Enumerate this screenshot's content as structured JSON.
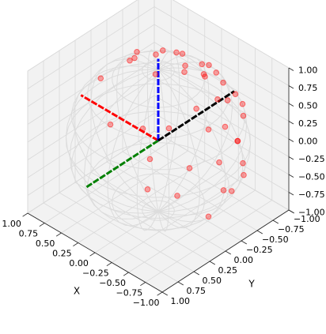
{
  "chart_data": {
    "type": "scatter3d",
    "xlabel": "X",
    "ylabel": "Y",
    "color": "#ff0000",
    "grid": true,
    "xlim": [
      -1,
      1
    ],
    "ylim": [
      -1,
      1
    ],
    "zlim": [
      -1,
      1
    ],
    "xticks": [
      {
        "value": -1,
        "label": "−1.00"
      },
      {
        "value": -0.75,
        "label": "−0.75"
      },
      {
        "value": -0.5,
        "label": "−0.50"
      },
      {
        "value": -0.25,
        "label": "−0.25"
      },
      {
        "value": 0,
        "label": "0.00"
      },
      {
        "value": 0.25,
        "label": "0.25"
      },
      {
        "value": 0.5,
        "label": "0.50"
      },
      {
        "value": 0.75,
        "label": "0.75"
      },
      {
        "value": 1,
        "label": "1.00"
      }
    ],
    "yticks": [
      {
        "value": -1,
        "label": "−1.00"
      },
      {
        "value": -0.75,
        "label": "−0.75"
      },
      {
        "value": -0.5,
        "label": "−0.50"
      },
      {
        "value": -0.25,
        "label": "−0.25"
      },
      {
        "value": 0,
        "label": "0.00"
      },
      {
        "value": 0.25,
        "label": "0.25"
      },
      {
        "value": 0.5,
        "label": "0.50"
      },
      {
        "value": 0.75,
        "label": "0.75"
      },
      {
        "value": 1,
        "label": "1.00"
      }
    ],
    "zticks": [
      {
        "value": -1,
        "label": "−1.00"
      },
      {
        "value": -0.75,
        "label": "−0.75"
      },
      {
        "value": -0.5,
        "label": "−0.50"
      },
      {
        "value": -0.25,
        "label": "−0.25"
      },
      {
        "value": 0,
        "label": "0.00"
      },
      {
        "value": 0.25,
        "label": "0.25"
      },
      {
        "value": 0.5,
        "label": "0.50"
      },
      {
        "value": 0.75,
        "label": "0.75"
      },
      {
        "value": 1,
        "label": "1.00"
      }
    ],
    "x": [
      -0.1,
      0.2,
      -0.3,
      0.1,
      -0.5,
      0.4,
      0.0,
      -0.2,
      0.5,
      -0.6,
      0.3,
      -0.4,
      0.6,
      -0.7,
      0.1,
      -0.8,
      0.7,
      0.2,
      -0.5,
      0.8,
      -0.3,
      0.5,
      -0.9,
      0.0,
      0.6,
      -0.6,
      0.9,
      -0.2,
      0.3,
      -0.95,
      0.95,
      0.4,
      -0.7,
      0.7,
      -0.1,
      0.3,
      -0.35,
      0.15,
      -0.25,
      0.45
    ],
    "y": [
      -0.99,
      -0.95,
      -0.9,
      -0.9,
      -0.8,
      -0.85,
      -0.8,
      -0.75,
      -0.7,
      -0.7,
      -0.7,
      -0.6,
      -0.6,
      -0.6,
      -0.6,
      -0.5,
      -0.5,
      -0.5,
      -0.5,
      -0.4,
      -0.4,
      -0.4,
      -0.3,
      -0.3,
      -0.3,
      -0.3,
      -0.2,
      -0.2,
      -0.15,
      -0.15,
      -0.1,
      -0.05,
      -0.05,
      -0.7,
      -0.95,
      -0.92,
      -0.88,
      -0.85,
      -0.65,
      -0.55
    ],
    "z": [
      0.05,
      0.24,
      0.3,
      -0.42,
      0.33,
      0.34,
      0.6,
      -0.63,
      -0.51,
      -0.39,
      0.65,
      0.69,
      0.53,
      0.39,
      -0.79,
      -0.33,
      -0.51,
      0.84,
      -0.71,
      0.45,
      0.87,
      -0.77,
      0.32,
      -0.95,
      0.74,
      0.74,
      -0.39,
      0.96,
      -0.94,
      -0.27,
      0.29,
      0.91,
      -0.71,
      0.14,
      -0.3,
      -0.25,
      -0.32,
      0.5,
      0.72,
      0.7
    ]
  }
}
